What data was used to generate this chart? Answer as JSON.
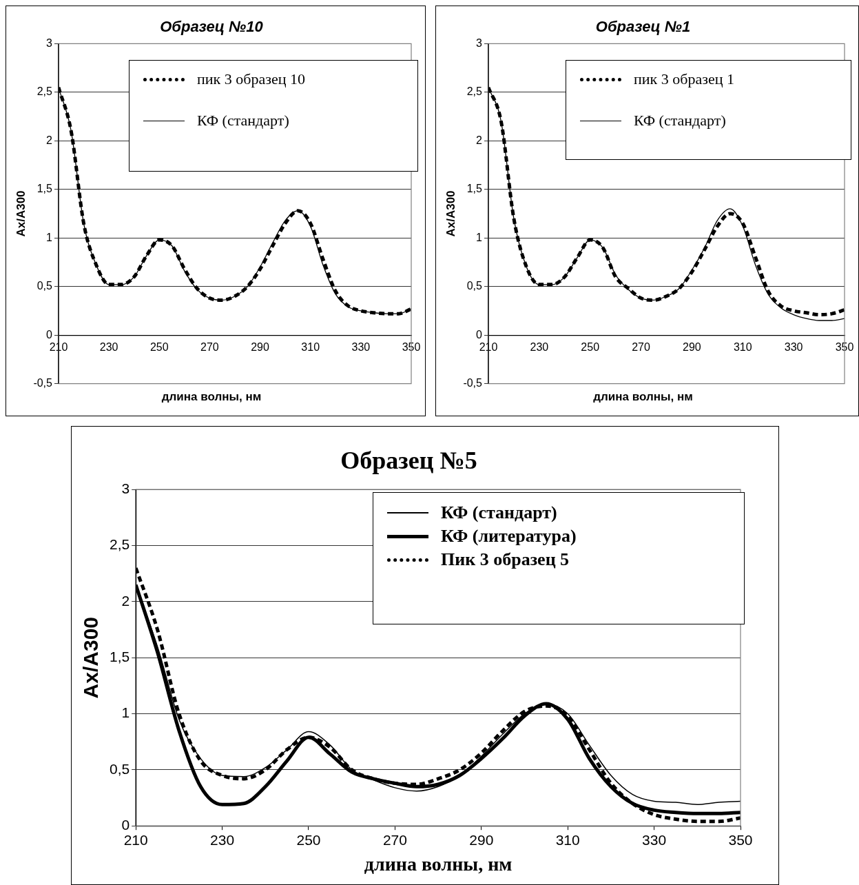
{
  "chart_data": [
    {
      "type": "line",
      "title": "Образец №10",
      "xlabel": "длина волны, нм",
      "ylabel": "Ax/A300",
      "x": [
        210,
        215,
        220,
        225,
        230,
        235,
        240,
        245,
        250,
        255,
        260,
        265,
        270,
        275,
        280,
        285,
        290,
        295,
        300,
        305,
        310,
        315,
        320,
        325,
        330,
        335,
        340,
        345,
        350
      ],
      "series": [
        {
          "name": "пик 3 образец 10",
          "color": "#000000",
          "line_style": "dashed",
          "values": [
            2.55,
            2.1,
            1.15,
            0.72,
            0.52,
            0.52,
            0.6,
            0.82,
            0.98,
            0.92,
            0.68,
            0.48,
            0.38,
            0.36,
            0.4,
            0.5,
            0.68,
            0.92,
            1.15,
            1.28,
            1.15,
            0.78,
            0.45,
            0.3,
            0.25,
            0.23,
            0.22,
            0.22,
            0.27
          ]
        },
        {
          "name": "КФ (стандарт)",
          "color": "#000000",
          "line_style": "solid",
          "values": [
            2.55,
            2.1,
            1.15,
            0.72,
            0.52,
            0.52,
            0.6,
            0.82,
            0.98,
            0.92,
            0.66,
            0.47,
            0.38,
            0.36,
            0.4,
            0.5,
            0.7,
            0.95,
            1.18,
            1.28,
            1.12,
            0.72,
            0.42,
            0.29,
            0.25,
            0.23,
            0.22,
            0.22,
            0.27
          ]
        }
      ],
      "xlim": [
        210,
        350
      ],
      "xticks": [
        210,
        230,
        250,
        270,
        290,
        310,
        330,
        350
      ],
      "ylim": [
        -0.5,
        3
      ],
      "yticks": [
        {
          "value": -0.5,
          "label": "-0,5"
        },
        0,
        {
          "value": 0.5,
          "label": "0,5"
        },
        1,
        {
          "value": 1.5,
          "label": "1,5"
        },
        2,
        {
          "value": 2.5,
          "label": "2,5"
        },
        3
      ],
      "grid": "y",
      "legend": "top right",
      "marker": "none"
    },
    {
      "type": "line",
      "title": "Образец №1",
      "xlabel": "длина волны, нм",
      "ylabel": "Ax/A300",
      "x": [
        210,
        215,
        220,
        225,
        230,
        235,
        240,
        245,
        250,
        255,
        260,
        265,
        270,
        275,
        280,
        285,
        290,
        295,
        300,
        305,
        310,
        315,
        320,
        325,
        330,
        335,
        340,
        345,
        350
      ],
      "series": [
        {
          "name": "пик 3 образец 1",
          "color": "#000000",
          "line_style": "dashed",
          "values": [
            2.55,
            2.2,
            1.2,
            0.7,
            0.52,
            0.52,
            0.6,
            0.8,
            0.98,
            0.9,
            0.6,
            0.48,
            0.38,
            0.36,
            0.4,
            0.48,
            0.65,
            0.88,
            1.12,
            1.25,
            1.15,
            0.8,
            0.45,
            0.3,
            0.25,
            0.23,
            0.21,
            0.22,
            0.26
          ]
        },
        {
          "name": "КФ (стандарт)",
          "color": "#000000",
          "line_style": "solid",
          "values": [
            2.55,
            2.2,
            1.2,
            0.7,
            0.52,
            0.52,
            0.6,
            0.8,
            0.98,
            0.9,
            0.62,
            0.47,
            0.38,
            0.36,
            0.4,
            0.48,
            0.67,
            0.9,
            1.18,
            1.3,
            1.12,
            0.72,
            0.42,
            0.28,
            0.21,
            0.17,
            0.15,
            0.15,
            0.17
          ]
        }
      ],
      "xlim": [
        210,
        350
      ],
      "xticks": [
        210,
        230,
        250,
        270,
        290,
        310,
        330,
        350
      ],
      "ylim": [
        -0.5,
        3
      ],
      "yticks": [
        {
          "value": -0.5,
          "label": "-0,5"
        },
        0,
        {
          "value": 0.5,
          "label": "0,5"
        },
        1,
        {
          "value": 1.5,
          "label": "1,5"
        },
        2,
        {
          "value": 2.5,
          "label": "2,5"
        },
        3
      ],
      "grid": "y",
      "legend": "top right",
      "marker": "none"
    },
    {
      "type": "line",
      "title": "Образец №5",
      "xlabel": "длина волны, нм",
      "ylabel": "Ax/A300",
      "x": [
        210,
        215,
        220,
        225,
        230,
        235,
        240,
        245,
        250,
        255,
        260,
        265,
        270,
        275,
        280,
        285,
        290,
        295,
        300,
        305,
        310,
        315,
        320,
        325,
        330,
        335,
        340,
        345,
        350
      ],
      "series": [
        {
          "name": "КФ (стандарт)",
          "color": "#000000",
          "line_style": "solid",
          "values": [
            2.15,
            1.6,
            0.95,
            0.6,
            0.45,
            0.44,
            0.52,
            0.68,
            0.84,
            0.72,
            0.5,
            0.41,
            0.34,
            0.31,
            0.35,
            0.45,
            0.62,
            0.82,
            1.0,
            1.09,
            1.0,
            0.72,
            0.45,
            0.28,
            0.22,
            0.21,
            0.19,
            0.21,
            0.22
          ]
        },
        {
          "name": "КФ (литература)",
          "color": "#000000",
          "line_style": "solid",
          "values": [
            2.15,
            1.55,
            0.85,
            0.35,
            0.19,
            0.2,
            0.35,
            0.58,
            0.79,
            0.64,
            0.48,
            0.42,
            0.38,
            0.35,
            0.37,
            0.45,
            0.6,
            0.78,
            0.98,
            1.09,
            0.95,
            0.6,
            0.35,
            0.2,
            0.14,
            0.12,
            0.11,
            0.11,
            0.12
          ]
        },
        {
          "name": "Пик 3 образец 5",
          "color": "#000000",
          "line_style": "dashed",
          "values": [
            2.3,
            1.75,
            1.0,
            0.58,
            0.45,
            0.42,
            0.5,
            0.68,
            0.79,
            0.7,
            0.5,
            0.42,
            0.38,
            0.37,
            0.42,
            0.5,
            0.65,
            0.85,
            1.02,
            1.07,
            0.98,
            0.68,
            0.38,
            0.2,
            0.1,
            0.06,
            0.04,
            0.04,
            0.07
          ]
        }
      ],
      "xlim": [
        210,
        350
      ],
      "xticks": [
        210,
        230,
        250,
        270,
        290,
        310,
        330,
        350
      ],
      "ylim": [
        0,
        3
      ],
      "yticks": [
        0,
        {
          "value": 0.5,
          "label": "0,5"
        },
        1,
        {
          "value": 1.5,
          "label": "1,5"
        },
        2,
        {
          "value": 2.5,
          "label": "2,5"
        },
        3
      ],
      "grid": "y",
      "legend": "top right",
      "marker": "none"
    }
  ]
}
